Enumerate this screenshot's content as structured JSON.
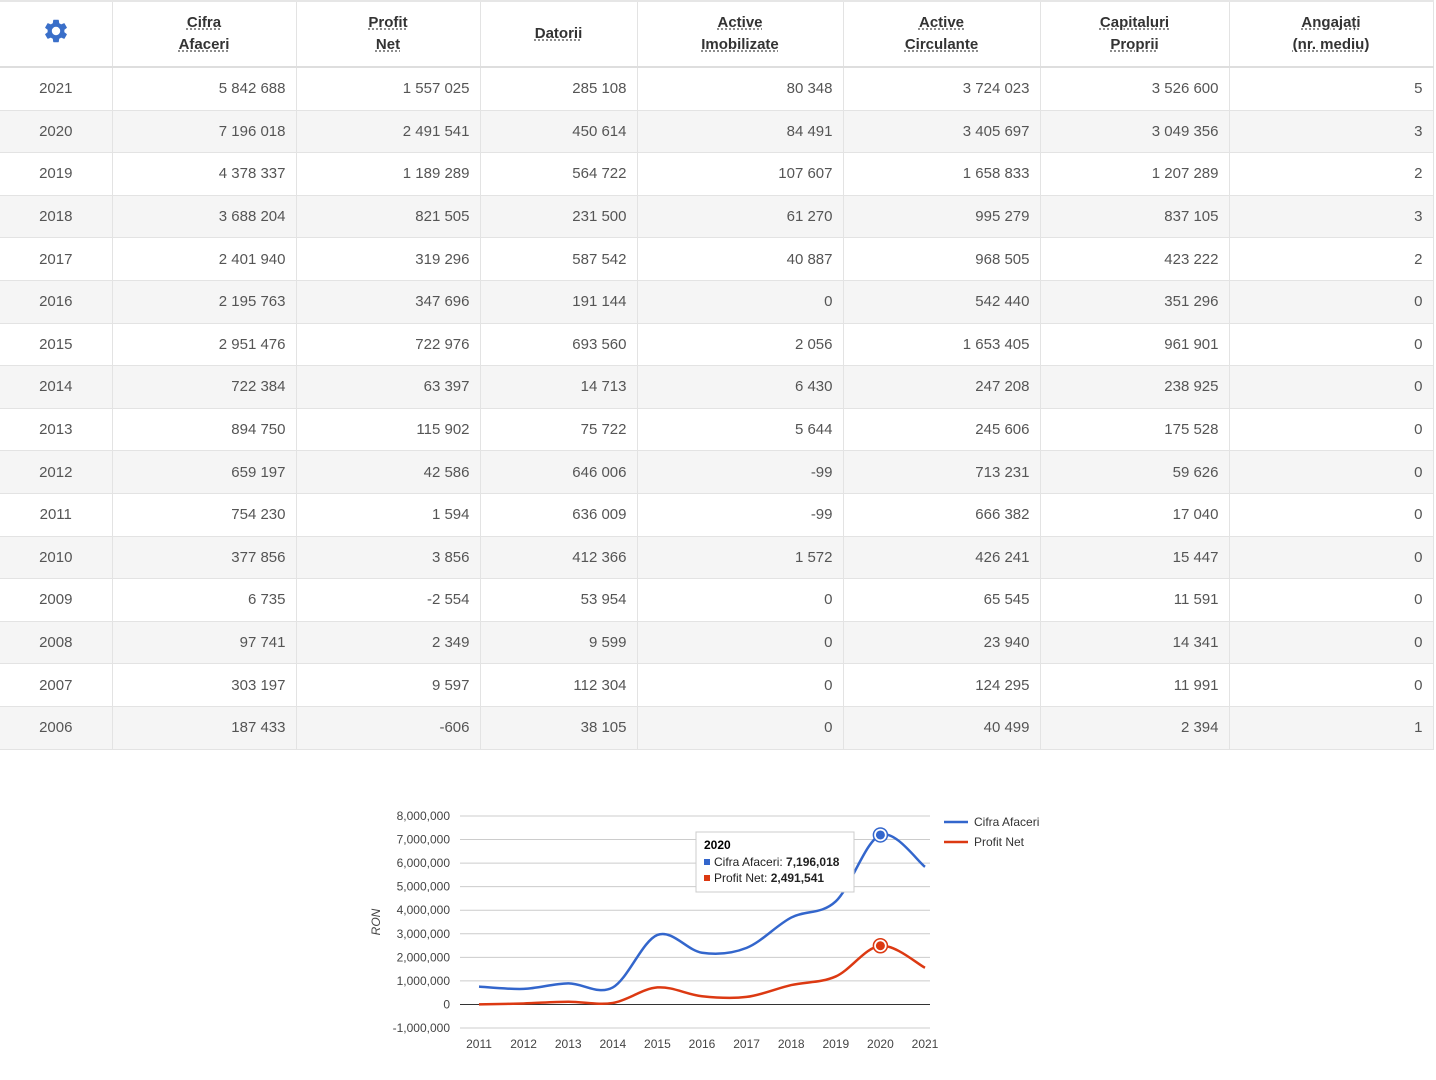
{
  "table": {
    "headers": [
      {
        "l1": "Cifra",
        "l2": "Afaceri"
      },
      {
        "l1": "Profit",
        "l2": "Net"
      },
      {
        "l1": "Datorii",
        "l2": ""
      },
      {
        "l1": "Active",
        "l2": "Imobilizate"
      },
      {
        "l1": "Active",
        "l2": "Circulante"
      },
      {
        "l1": "Capitaluri",
        "l2": "Proprii"
      },
      {
        "l1": "Angajați",
        "l2": "(nr. mediu)"
      }
    ],
    "settings_icon": "gear-icon",
    "accent_color": "#3a6fc9",
    "rows": [
      [
        "2021",
        "5 842 688",
        "1 557 025",
        "285 108",
        "80 348",
        "3 724 023",
        "3 526 600",
        "5"
      ],
      [
        "2020",
        "7 196 018",
        "2 491 541",
        "450 614",
        "84 491",
        "3 405 697",
        "3 049 356",
        "3"
      ],
      [
        "2019",
        "4 378 337",
        "1 189 289",
        "564 722",
        "107 607",
        "1 658 833",
        "1 207 289",
        "2"
      ],
      [
        "2018",
        "3 688 204",
        "821 505",
        "231 500",
        "61 270",
        "995 279",
        "837 105",
        "3"
      ],
      [
        "2017",
        "2 401 940",
        "319 296",
        "587 542",
        "40 887",
        "968 505",
        "423 222",
        "2"
      ],
      [
        "2016",
        "2 195 763",
        "347 696",
        "191 144",
        "0",
        "542 440",
        "351 296",
        "0"
      ],
      [
        "2015",
        "2 951 476",
        "722 976",
        "693 560",
        "2 056",
        "1 653 405",
        "961 901",
        "0"
      ],
      [
        "2014",
        "722 384",
        "63 397",
        "14 713",
        "6 430",
        "247 208",
        "238 925",
        "0"
      ],
      [
        "2013",
        "894 750",
        "115 902",
        "75 722",
        "5 644",
        "245 606",
        "175 528",
        "0"
      ],
      [
        "2012",
        "659 197",
        "42 586",
        "646 006",
        "-99",
        "713 231",
        "59 626",
        "0"
      ],
      [
        "2011",
        "754 230",
        "1 594",
        "636 009",
        "-99",
        "666 382",
        "17 040",
        "0"
      ],
      [
        "2010",
        "377 856",
        "3 856",
        "412 366",
        "1 572",
        "426 241",
        "15 447",
        "0"
      ],
      [
        "2009",
        "6 735",
        "-2 554",
        "53 954",
        "0",
        "65 545",
        "11 591",
        "0"
      ],
      [
        "2008",
        "97 741",
        "2 349",
        "9 599",
        "0",
        "23 940",
        "14 341",
        "0"
      ],
      [
        "2007",
        "303 197",
        "9 597",
        "112 304",
        "0",
        "124 295",
        "11 991",
        "0"
      ],
      [
        "2006",
        "187 433",
        "-606",
        "38 105",
        "0",
        "40 499",
        "2 394",
        "1"
      ]
    ]
  },
  "chart_data": {
    "type": "line",
    "title": "",
    "xlabel": "",
    "ylabel": "RON",
    "x": [
      "2011",
      "2012",
      "2013",
      "2014",
      "2015",
      "2016",
      "2017",
      "2018",
      "2019",
      "2020",
      "2021"
    ],
    "ylim": [
      -1000000,
      8000000
    ],
    "yticks": [
      -1000000,
      0,
      1000000,
      2000000,
      3000000,
      4000000,
      5000000,
      6000000,
      7000000,
      8000000
    ],
    "ytick_labels": [
      "-1,000,000",
      "0",
      "1,000,000",
      "2,000,000",
      "3,000,000",
      "4,000,000",
      "5,000,000",
      "6,000,000",
      "7,000,000",
      "8,000,000"
    ],
    "grid": true,
    "legend_position": "right",
    "series": [
      {
        "name": "Cifra Afaceri",
        "color": "#3366cc",
        "values": [
          754230,
          659197,
          894750,
          722384,
          2951476,
          2195763,
          2401940,
          3688204,
          4378337,
          7196018,
          5842688
        ]
      },
      {
        "name": "Profit Net",
        "color": "#dc3912",
        "values": [
          1594,
          42586,
          115902,
          63397,
          722976,
          347696,
          319296,
          821505,
          1189289,
          2491541,
          1557025
        ]
      }
    ],
    "tooltip": {
      "title": "2020",
      "rows": [
        {
          "label": "Cifra Afaceri",
          "value": "7,196,018"
        },
        {
          "label": "Profit Net",
          "value": "2,491,541"
        }
      ]
    },
    "highlighted_index": 9
  }
}
